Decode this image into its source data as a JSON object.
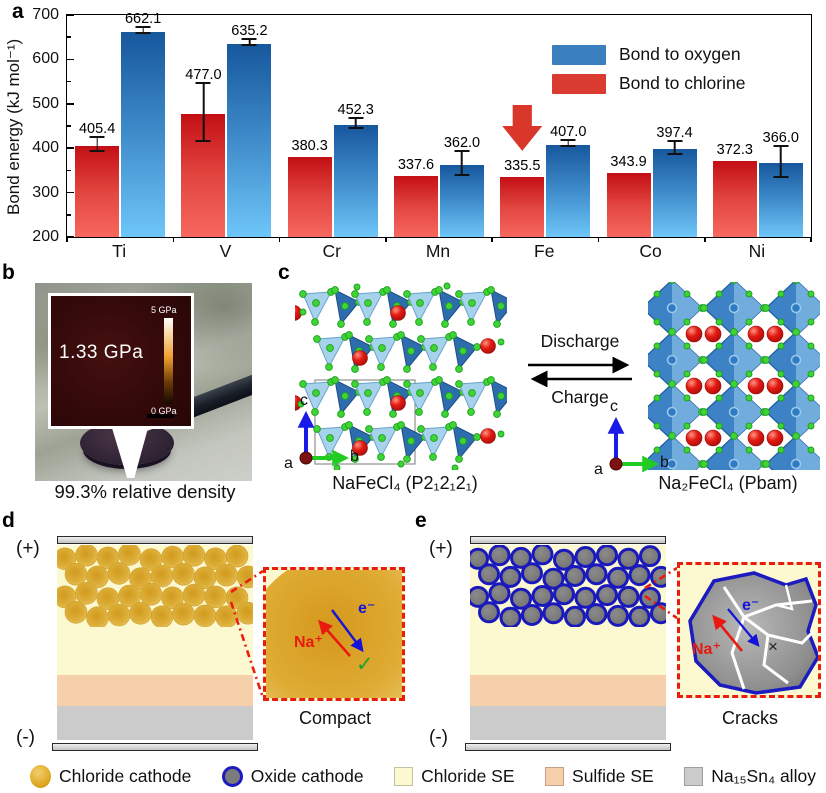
{
  "figure": {
    "panel_a": {
      "label": "a",
      "legend": [
        {
          "label": "Bond to oxygen",
          "color": "#3a7fbe"
        },
        {
          "label": "Bond to chlorine",
          "color": "#da3b30"
        }
      ]
    },
    "panel_b": {
      "label": "b",
      "modulus_value": "1.33 GPa",
      "scale_max": "5 GPa",
      "scale_min": "0 GPa",
      "caption": "99.3% relative density"
    },
    "panel_c": {
      "label": "c",
      "discharge": "Discharge",
      "charge": "Charge",
      "left_caption": "NaFeCl₄ (P2₁2₁2₁)",
      "right_caption": "Na₂FeCl₄ (Pbam)",
      "axis_a": "a",
      "axis_b": "b",
      "axis_c": "c"
    },
    "panel_d": {
      "label": "d",
      "positive": "(+)",
      "negative": "(-)",
      "na_label": "Na⁺",
      "e_label": "e⁻",
      "check": "✓",
      "caption": "Compact"
    },
    "panel_e": {
      "label": "e",
      "positive": "(+)",
      "negative": "(-)",
      "na_label": "Na⁺",
      "e_label": "e⁻",
      "cross": "×",
      "caption": "Cracks"
    },
    "bottom_legend": [
      {
        "label": "Chloride cathode",
        "swatch": "circle",
        "color": "#dda622"
      },
      {
        "label": "Oxide cathode",
        "swatch": "ring-circle",
        "color": "#7b7b7b",
        "ring": "#1b1bbf"
      },
      {
        "label": "Chloride SE",
        "swatch": "square",
        "color": "#fcf8cf"
      },
      {
        "label": "Sulfide SE",
        "swatch": "square",
        "color": "#f6cfab"
      },
      {
        "label": "Na₁₅Sn₄ alloy",
        "swatch": "square",
        "color": "#cbcbcb"
      }
    ]
  },
  "chart_data": {
    "type": "bar",
    "title": "",
    "categories": [
      "Ti",
      "V",
      "Cr",
      "Mn",
      "Fe",
      "Co",
      "Ni"
    ],
    "series": [
      {
        "name": "Bond to chlorine",
        "position": "left",
        "color_top": "#c30f14",
        "color_mid": "#e2453f",
        "color_bottom": "#f6685f",
        "values": [
          405.4,
          477.0,
          380.3,
          337.6,
          335.5,
          343.9,
          372.3
        ],
        "errors": [
          13,
          63,
          0,
          0,
          0,
          0,
          0
        ]
      },
      {
        "name": "Bond to oxygen",
        "position": "right",
        "color_top": "#17579d",
        "color_mid": "#3f8ccb",
        "color_bottom": "#6ec6f8",
        "values": [
          662.1,
          635.2,
          452.3,
          362.0,
          407.0,
          397.4,
          366.0
        ],
        "errors": [
          4,
          4,
          8,
          25,
          5,
          12,
          33
        ]
      }
    ],
    "ylabel": "Bond energy (kJ mol⁻¹)",
    "xlabel": "",
    "ylim": [
      200,
      700
    ],
    "yticks": [
      200,
      300,
      400,
      500,
      600,
      700
    ],
    "minor_yticks": [
      250,
      350,
      450,
      550,
      650
    ],
    "grid": false,
    "legend_position": "top-right",
    "annotation": {
      "type": "down-arrow",
      "series": "Bond to chlorine",
      "category": "Fe",
      "color": "#d8372a"
    }
  }
}
